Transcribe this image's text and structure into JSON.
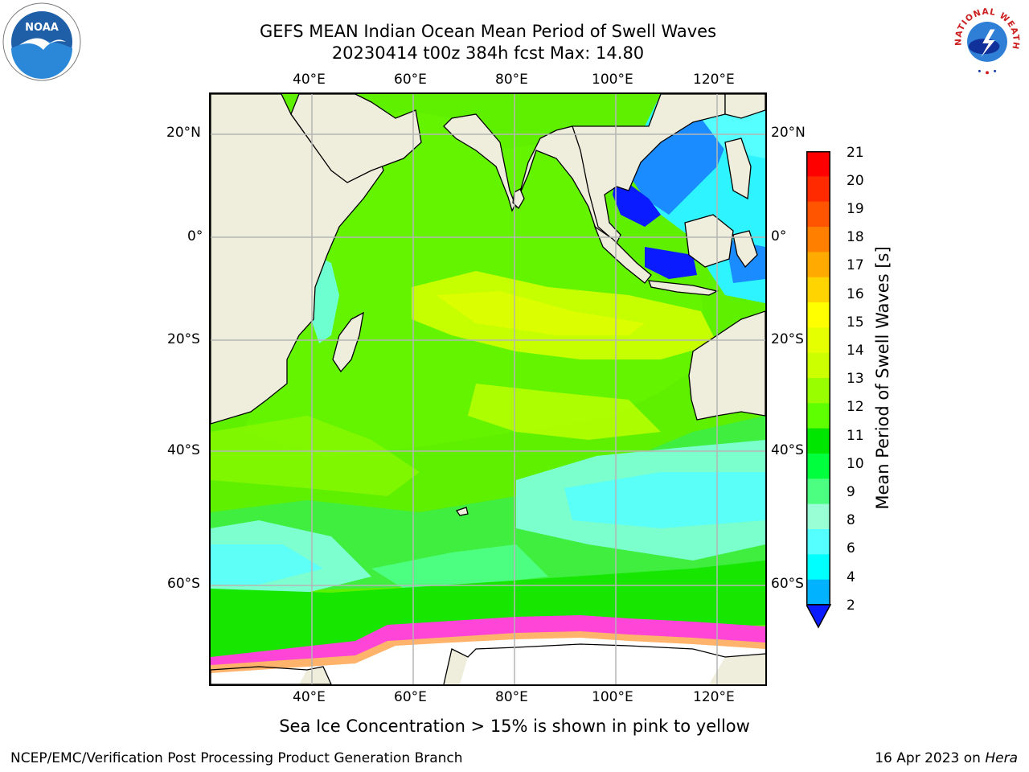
{
  "title": {
    "line1": "GEFS MEAN Indian Ocean Mean Period of Swell Waves",
    "line2": "20230414 t00z 384h fcst   Max: 14.80"
  },
  "logos": {
    "noaa": {
      "text": "NOAA",
      "icon": "noaa-logo-icon"
    },
    "nws": {
      "text": "NATIONAL WEATHER SERVICE",
      "icon": "nws-logo-icon"
    }
  },
  "map": {
    "lon_ticks_top": [
      "40°E",
      "60°E",
      "80°E",
      "100°E",
      "120°E"
    ],
    "lon_ticks_bottom": [
      "40°E",
      "60°E",
      "80°E",
      "100°E",
      "120°E"
    ],
    "lat_ticks_left": [
      "20°N",
      "0°",
      "20°S",
      "40°S",
      "60°S"
    ],
    "lat_ticks_right": [
      "20°N",
      "0°",
      "20°S",
      "40°S",
      "60°S"
    ],
    "lon_range": [
      20,
      130
    ],
    "lat_range": [
      -75,
      28
    ],
    "colors": {
      "land": "#efeedd",
      "grid": "#b5b5b5",
      "coast": "#000000"
    }
  },
  "colorbar": {
    "title": "Mean Period of Swell Waves [s]",
    "labels": [
      "21",
      "20",
      "19",
      "18",
      "17",
      "16",
      "15",
      "14",
      "13",
      "12",
      "11",
      "10",
      "9",
      "8",
      "6",
      "4",
      "2"
    ],
    "colors": [
      "#ff0000",
      "#ff2a00",
      "#ff5500",
      "#ff8000",
      "#ffaa00",
      "#ffd400",
      "#ffff00",
      "#e6ff00",
      "#ccff00",
      "#99ff00",
      "#5eff00",
      "#00e600",
      "#00ff3d",
      "#4dff80",
      "#99ffd4",
      "#55ffff",
      "#00ffff",
      "#00b2ff"
    ],
    "extend_color": "#0a1bff"
  },
  "caption": "Sea Ice Concentration > 15% is shown in pink to yellow",
  "footer": {
    "left": "NCEP/EMC/Verification Post Processing Product Generation Branch",
    "right_date": "16 Apr 2023 on ",
    "right_host": "Hera"
  }
}
